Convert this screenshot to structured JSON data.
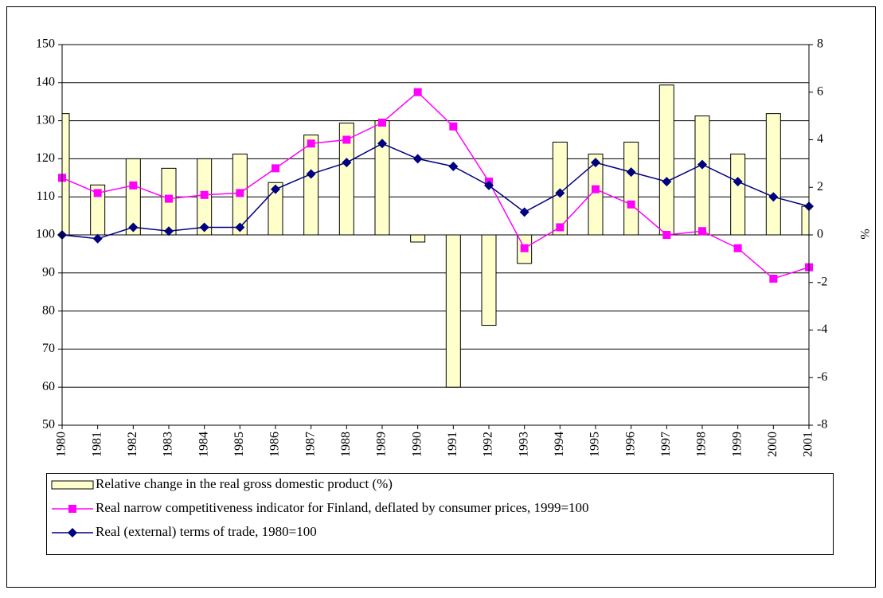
{
  "chart_data": {
    "type": "combo",
    "categories": [
      "1980",
      "1981",
      "1982",
      "1983",
      "1984",
      "1985",
      "1986",
      "1987",
      "1988",
      "1989",
      "1990",
      "1991",
      "1992",
      "1993",
      "1994",
      "1995",
      "1996",
      "1997",
      "1998",
      "1999",
      "2000",
      "2001"
    ],
    "series": [
      {
        "name": "Relative change in the real gross domestic product (%)",
        "type": "bar",
        "axis": "y2",
        "color": "#ffffcc",
        "values": [
          5.1,
          2.1,
          3.2,
          2.8,
          3.2,
          3.4,
          2.2,
          4.2,
          4.7,
          4.8,
          -0.3,
          -6.4,
          -3.8,
          -1.2,
          3.9,
          3.4,
          3.9,
          6.3,
          5.0,
          3.4,
          5.1,
          1.2
        ]
      },
      {
        "name": "Real narrow competitiveness indicator for Finland, deflated by consumer prices, 1999=100",
        "type": "line",
        "marker": "square",
        "color": "#ff00ff",
        "values": [
          115,
          111,
          113,
          109.5,
          110.5,
          111,
          117.5,
          124,
          125,
          129.5,
          137.5,
          128.5,
          114,
          96.5,
          102,
          112,
          108,
          100,
          101,
          96.5,
          88.5,
          91.5
        ]
      },
      {
        "name": "Real (external) terms of trade, 1980=100",
        "type": "line",
        "marker": "diamond",
        "color": "#000080",
        "values": [
          100,
          99,
          102,
          101,
          102,
          102,
          112,
          116,
          119,
          124,
          120,
          118,
          113,
          106,
          111,
          119,
          116.5,
          114,
          118.5,
          114,
          110,
          107.5
        ]
      }
    ],
    "ylim": [
      50,
      150
    ],
    "yticks": [
      50,
      60,
      70,
      80,
      90,
      100,
      110,
      120,
      130,
      140,
      150
    ],
    "y2lim": [
      -8,
      8
    ],
    "y2ticks": [
      -8,
      -6,
      -4,
      -2,
      0,
      2,
      4,
      6,
      8
    ],
    "y2label": "%",
    "grid": true
  }
}
